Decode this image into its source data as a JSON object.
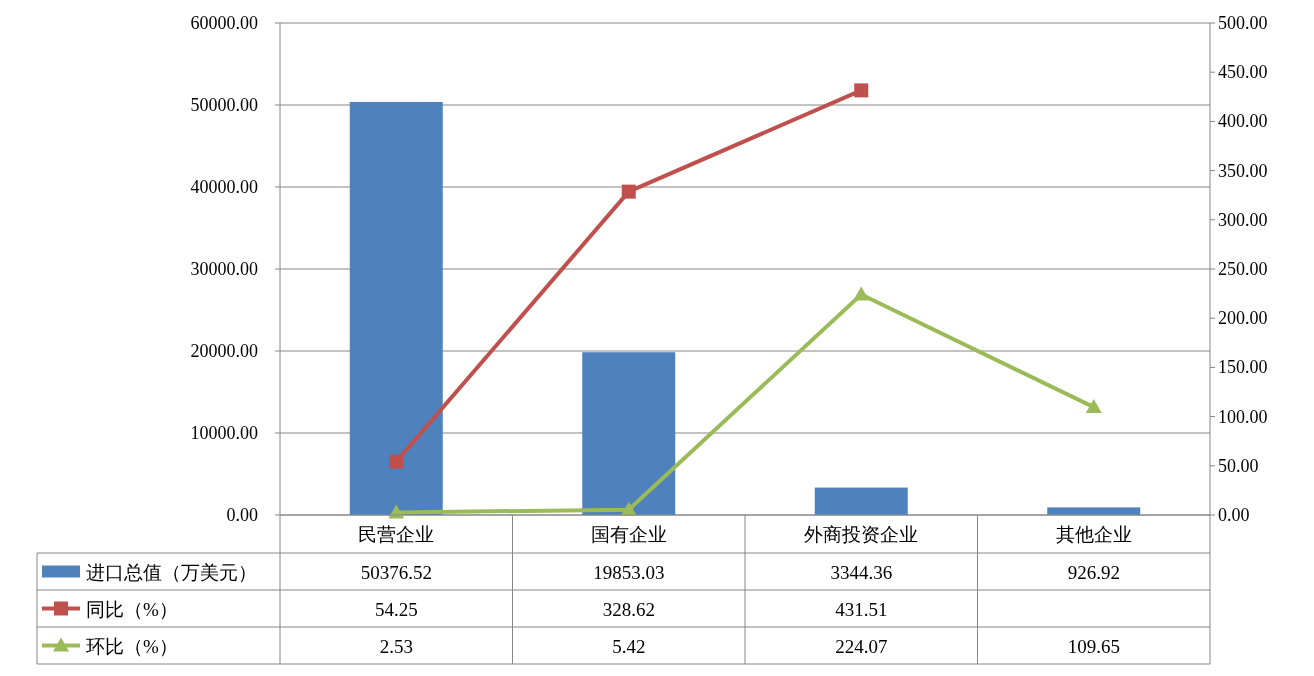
{
  "chart_data": {
    "type": "bar",
    "categories": [
      "民营企业",
      "国有企业",
      "外商投资企业",
      "其他企业"
    ],
    "series": [
      {
        "name": "进口总值（万美元）",
        "color": "#4f81bd",
        "values": [
          50376.52,
          19853.03,
          3344.36,
          926.92
        ]
      },
      {
        "name": "同比（%）",
        "type": "line",
        "axis": "y2",
        "marker": "square",
        "color": "#c0504d",
        "values": [
          54.25,
          328.62,
          431.51,
          null
        ]
      },
      {
        "name": "环比（%）",
        "type": "line",
        "axis": "y2",
        "marker": "triangle",
        "color": "#9bbb59",
        "values": [
          2.53,
          5.42,
          224.07,
          109.65
        ]
      }
    ],
    "ylim": [
      0,
      60000
    ],
    "yticks": [
      {
        "value": 0,
        "label": "0.00"
      },
      {
        "value": 10000,
        "label": "10000.00"
      },
      {
        "value": 20000,
        "label": "20000.00"
      },
      {
        "value": 30000,
        "label": "30000.00"
      },
      {
        "value": 40000,
        "label": "40000.00"
      },
      {
        "value": 50000,
        "label": "50000.00"
      },
      {
        "value": 60000,
        "label": "60000.00"
      }
    ],
    "y2lim": [
      0,
      500
    ],
    "y2ticks": [
      {
        "value": 0,
        "label": "0.00"
      },
      {
        "value": 50,
        "label": "50.00"
      },
      {
        "value": 100,
        "label": "100.00"
      },
      {
        "value": 150,
        "label": "150.00"
      },
      {
        "value": 200,
        "label": "200.00"
      },
      {
        "value": 250,
        "label": "250.00"
      },
      {
        "value": 300,
        "label": "300.00"
      },
      {
        "value": 350,
        "label": "350.00"
      },
      {
        "value": 400,
        "label": "400.00"
      },
      {
        "value": 450,
        "label": "450.00"
      },
      {
        "value": 500,
        "label": "500.00"
      }
    ],
    "grid": "y",
    "legend": "bottom",
    "data_labels": true
  }
}
